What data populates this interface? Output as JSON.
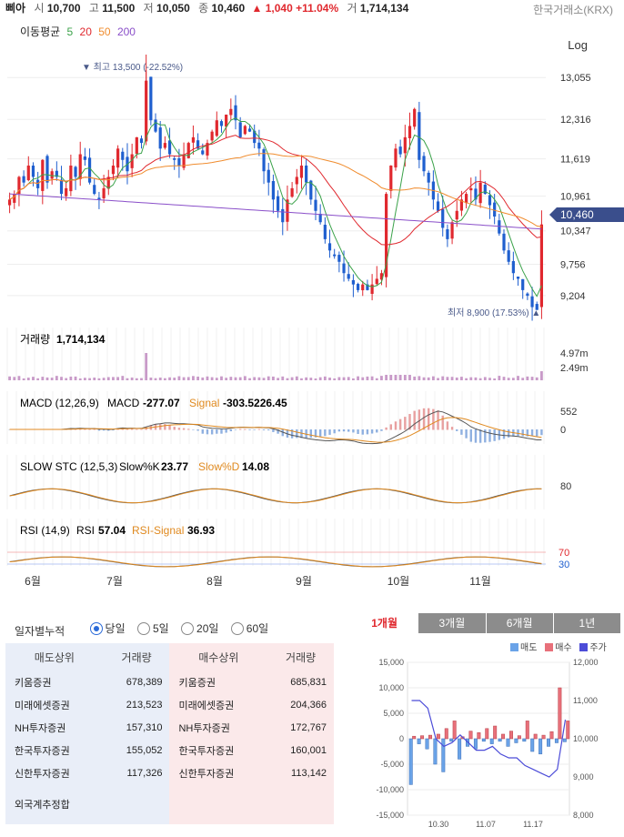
{
  "header": {
    "stock_name": "삐아",
    "open_label": "시",
    "open": "10,700",
    "high_label": "고",
    "high": "11,500",
    "low_label": "저",
    "low": "10,050",
    "close_label": "종",
    "close": "10,460",
    "change": "▲ 1,040 +11.04%",
    "volume_label": "거",
    "volume": "1,714,134",
    "exchange": "한국거래소(KRX)"
  },
  "ma_legend": {
    "label": "이동평균",
    "periods": [
      "5",
      "20",
      "50",
      "200"
    ],
    "colors": [
      "#3ba24a",
      "#e0282e",
      "#f08c2e",
      "#8a4fc9"
    ]
  },
  "log_label": "Log",
  "colors": {
    "up": "#e0282e",
    "down": "#1f5fcf",
    "accent": "#4a5a8a",
    "volume": "#c8a0c8",
    "macd": "#555555",
    "signal": "#e08a20"
  },
  "chart_data": [
    {
      "type": "candlestick",
      "ylim": [
        8800,
        13300
      ],
      "yticks": [
        "13,055",
        "12,316",
        "11,619",
        "10,961",
        "10,347",
        "9,756",
        "9,204"
      ],
      "xticks": [
        "6월",
        "7월",
        "8월",
        "9월",
        "10월",
        "11월"
      ],
      "max_label": "▼ 최고 13,500 (-22.52%)",
      "min_label": "최저 8,900 (17.53%) ▲",
      "current_price_label": "10,460",
      "note": "Values approximated from candle positions",
      "ohlc_close": [
        10900,
        11000,
        11300,
        11200,
        11500,
        11300,
        11100,
        11600,
        11200,
        11400,
        11300,
        11000,
        11100,
        11500,
        11300,
        11700,
        11600,
        11200,
        11000,
        10900,
        11100,
        11300,
        11500,
        11800,
        11600,
        11400,
        11700,
        12000,
        11900,
        13000,
        12300,
        12100,
        11800,
        11900,
        11700,
        11600,
        11500,
        11700,
        11900,
        12000,
        11800,
        11700,
        11900,
        12100,
        12300,
        12200,
        12400,
        12500,
        12300,
        12000,
        12200,
        12100,
        11900,
        11800,
        11400,
        11200,
        10900,
        10700,
        10500,
        10900,
        11100,
        11300,
        11500,
        11200,
        10900,
        10700,
        10500,
        10200,
        10000,
        9900,
        9800,
        9600,
        9500,
        9400,
        9300,
        9400,
        9300,
        9400,
        9500,
        9600,
        11000,
        11500,
        11800,
        11700,
        12000,
        12200,
        12500,
        11600,
        11400,
        11200,
        10900,
        10700,
        10400,
        10200,
        10500,
        10700,
        10900,
        11000,
        11100,
        10900,
        11200,
        11000,
        10800,
        10600,
        10300,
        10000,
        9800,
        9600,
        9500,
        9300,
        9200,
        9000,
        8950,
        10460
      ],
      "ma5_color": "#3ba24a",
      "ma20_color": "#e0282e",
      "ma50_color": "#f08c2e",
      "ma200_color": "#8a4fc9"
    },
    {
      "type": "bar",
      "title": "거래량",
      "title_value": "1,714,134",
      "yticks": [
        "4.97m",
        "2.49m"
      ]
    },
    {
      "type": "line",
      "title": "MACD (12,26,9)",
      "macd_label": "MACD",
      "macd_value": "-277.07",
      "signal_label": "Signal",
      "signal_value": "-303.5226.45",
      "yticks": [
        "552",
        "0"
      ]
    },
    {
      "type": "line",
      "title": "SLOW STC (12,5,3)",
      "k_label": "Slow%K",
      "k_value": "23.77",
      "d_label": "Slow%D",
      "d_value": "14.08",
      "yticks": [
        "80"
      ]
    },
    {
      "type": "line",
      "title": "RSI (14,9)",
      "rsi_label": "RSI",
      "rsi_value": "57.04",
      "signal_label": "RSI-Signal",
      "signal_value": "36.93",
      "yticks": [
        "70",
        "30"
      ]
    },
    {
      "type": "bar",
      "title": "",
      "legend": [
        "매도",
        "매수",
        "주가"
      ],
      "categories": [
        "10.30",
        "11.07",
        "11.17"
      ],
      "ylim": [
        -15000,
        15000
      ],
      "y2lim": [
        8000,
        12000
      ],
      "yticks": [
        "15,000",
        "10,000",
        "5,000",
        "0",
        "-5,000",
        "-10,000",
        "-15,000"
      ],
      "y2ticks": [
        "12,000",
        "11,000",
        "10,000",
        "9,000",
        "8,000"
      ],
      "sell": [
        -9000,
        -1000,
        -2000,
        -5000,
        -6500,
        -500,
        -4000,
        -1500,
        -2000,
        -500,
        -1000,
        -500,
        -1500,
        -800,
        -500,
        -2500,
        -3000,
        -1500,
        -800,
        -600
      ],
      "buy": [
        500,
        600,
        700,
        900,
        2000,
        3500,
        400,
        1500,
        1200,
        2000,
        2500,
        900,
        1500,
        600,
        3500,
        900,
        700,
        1400,
        10000,
        3500
      ],
      "price": [
        11000,
        11000,
        10800,
        10000,
        9800,
        9900,
        10100,
        9900,
        9700,
        9700,
        9800,
        9600,
        9500,
        9500,
        9300,
        9200,
        9100,
        9000,
        9200,
        10500
      ]
    }
  ],
  "investor_panel": {
    "title": "일자별누적",
    "options": [
      "당일",
      "5일",
      "20일",
      "60일"
    ],
    "selected": "당일",
    "sell_header": "매도상위",
    "buy_header": "매수상위",
    "volume_header": "거래량",
    "rows": [
      {
        "sell_name": "키움증권",
        "sell_vol": "678,389",
        "buy_name": "키움증권",
        "buy_vol": "685,831"
      },
      {
        "sell_name": "미래에셋증권",
        "sell_vol": "213,523",
        "buy_name": "미래에셋증권",
        "buy_vol": "204,366"
      },
      {
        "sell_name": "NH투자증권",
        "sell_vol": "157,310",
        "buy_name": "NH투자증권",
        "buy_vol": "172,767"
      },
      {
        "sell_name": "한국투자증권",
        "sell_vol": "155,052",
        "buy_name": "한국투자증권",
        "buy_vol": "160,001"
      },
      {
        "sell_name": "신한투자증권",
        "sell_vol": "117,326",
        "buy_name": "신한투자증권",
        "buy_vol": "113,142"
      }
    ],
    "foreign_label": "외국계추정합"
  },
  "range_tabs": [
    "1개월",
    "3개월",
    "6개월",
    "1년"
  ],
  "range_selected": "1개월"
}
